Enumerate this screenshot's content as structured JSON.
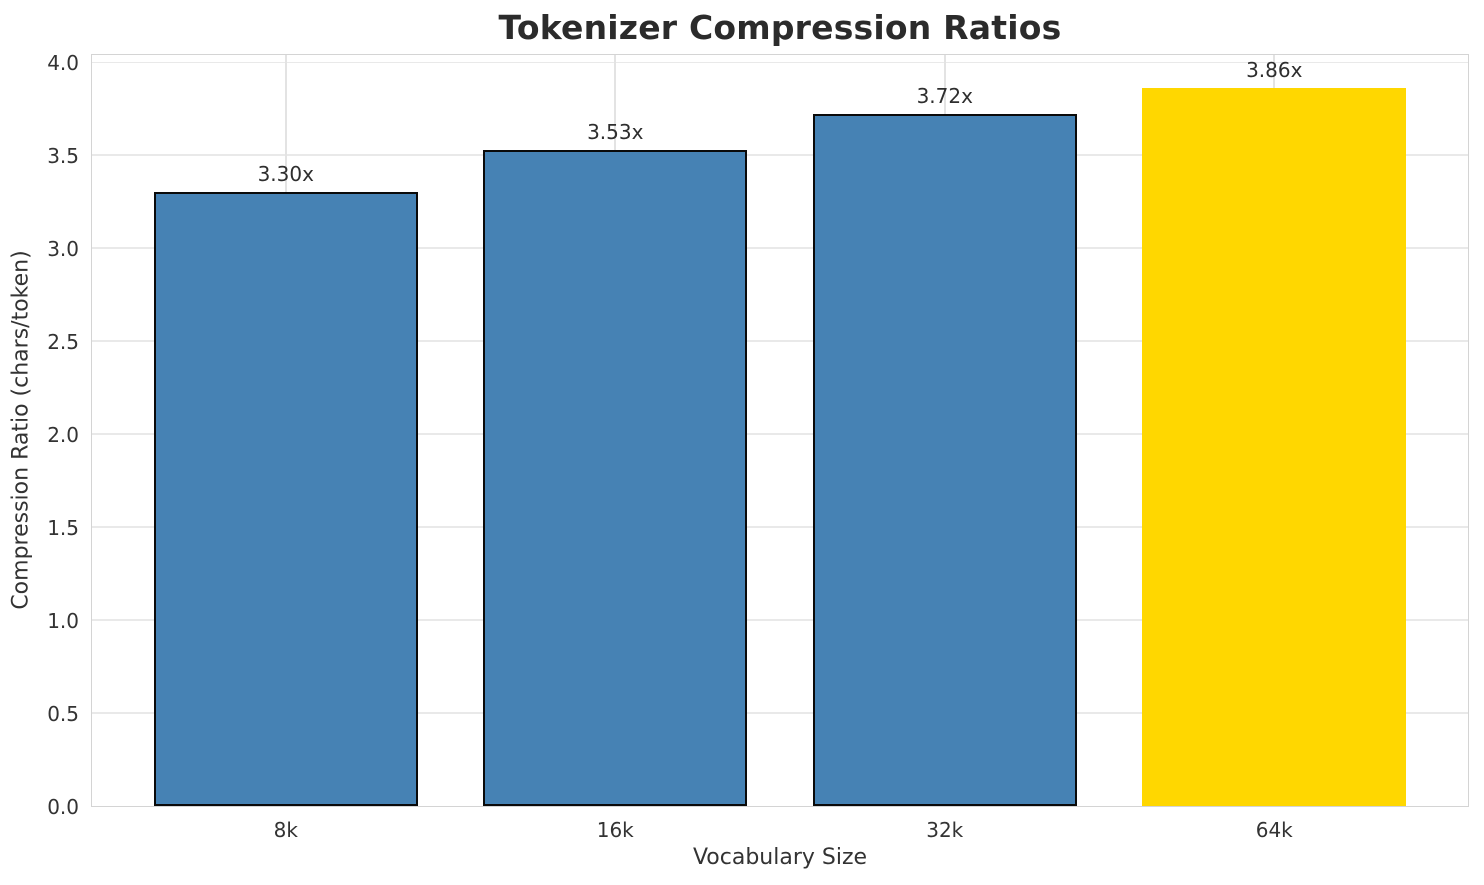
{
  "chart_data": {
    "type": "bar",
    "title": "Tokenizer Compression Ratios",
    "xlabel": "Vocabulary Size",
    "ylabel": "Compression Ratio (chars/token)",
    "categories": [
      "8k",
      "16k",
      "32k",
      "64k"
    ],
    "values": [
      3.3,
      3.53,
      3.72,
      3.86
    ],
    "bar_labels": [
      "3.30x",
      "3.53x",
      "3.72x",
      "3.86x"
    ],
    "ylim": [
      0,
      4.05
    ],
    "yticks": [
      0.0,
      0.5,
      1.0,
      1.5,
      2.0,
      2.5,
      3.0,
      3.5,
      4.0
    ],
    "ytick_labels": [
      "0.0",
      "0.5",
      "1.0",
      "1.5",
      "2.0",
      "2.5",
      "3.0",
      "3.5",
      "4.0"
    ],
    "grid": true,
    "legend_position": "none",
    "highlight_index": 3,
    "colors": {
      "bar_default": "#4682B4",
      "bar_highlight": "#FFD700",
      "bar_edge": "#0a0a0a",
      "grid_line": "#e9e9e9",
      "spine": "#d4d4d4",
      "text": "#333333",
      "title": "#2b2b2b"
    }
  }
}
